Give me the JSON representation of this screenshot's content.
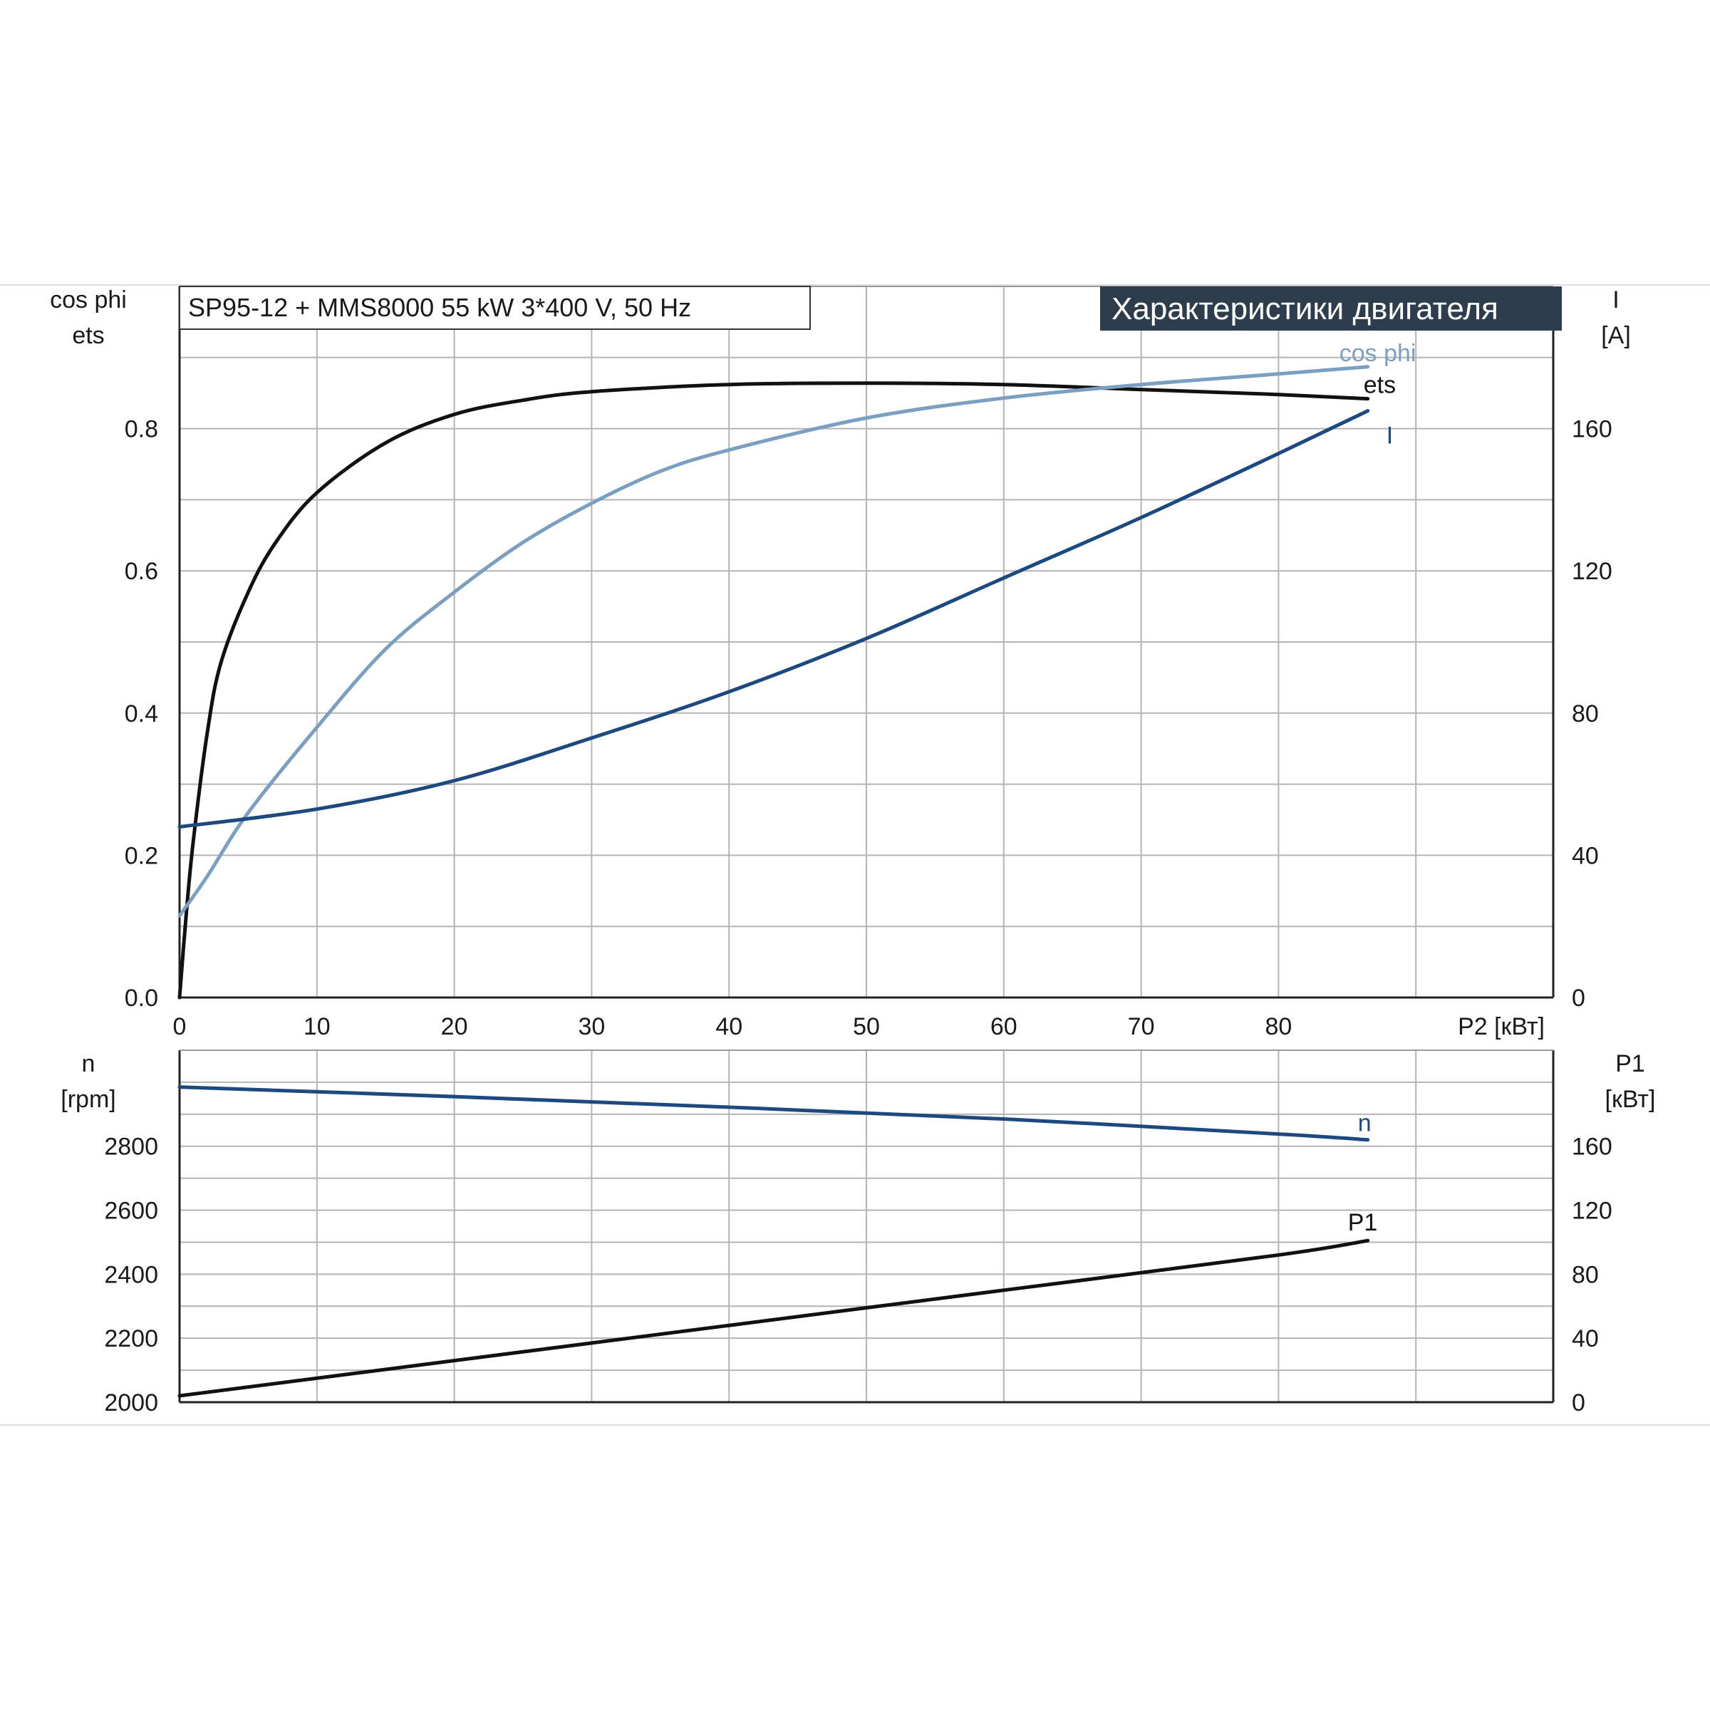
{
  "header": {
    "model": "SP95-12 + MMS8000   55 kW   3*400 V, 50 Hz",
    "section_title": "Характеристики двигателя"
  },
  "colors": {
    "eta": "#111111",
    "cos_phi": "#7a9fc0",
    "current": "#1c4a80",
    "speed": "#1c4a80",
    "p1": "#111111",
    "grid": "#b5b5b5",
    "title_bg": "#2e3d4e"
  },
  "chart_data": [
    {
      "type": "line",
      "title": "",
      "xlabel": "P2 [кВт]",
      "x_ticks": [
        "0",
        "10",
        "20",
        "30",
        "40",
        "50",
        "60",
        "70",
        "80"
      ],
      "xlim": [
        0,
        100
      ],
      "left_axis": {
        "label_top": "cos phi",
        "label_bottom": "ets",
        "ylim": [
          0,
          1.0
        ],
        "ticks": [
          "0.0",
          "0.2",
          "0.4",
          "0.6",
          "0.8"
        ]
      },
      "right_axis": {
        "label_top": "I",
        "label_bottom": "[A]",
        "ylim": [
          0,
          200
        ],
        "ticks": [
          "0",
          "40",
          "80",
          "120",
          "160"
        ]
      },
      "series": [
        {
          "name": "ets",
          "axis": "left",
          "x": [
            0,
            0.5,
            1,
            2,
            3,
            5,
            7,
            10,
            15,
            20,
            25,
            30,
            40,
            50,
            60,
            70,
            80,
            86.5
          ],
          "y": [
            0,
            0.12,
            0.22,
            0.37,
            0.47,
            0.57,
            0.64,
            0.71,
            0.78,
            0.82,
            0.84,
            0.852,
            0.862,
            0.864,
            0.862,
            0.855,
            0.848,
            0.842
          ]
        },
        {
          "name": "cos phi",
          "axis": "left",
          "x": [
            0,
            2,
            5,
            10,
            15,
            20,
            25,
            30,
            35,
            40,
            50,
            60,
            70,
            80,
            86.5
          ],
          "y": [
            0.115,
            0.17,
            0.26,
            0.38,
            0.49,
            0.57,
            0.64,
            0.695,
            0.74,
            0.77,
            0.815,
            0.843,
            0.862,
            0.877,
            0.887
          ]
        },
        {
          "name": "I",
          "axis": "right",
          "x": [
            0,
            10,
            20,
            30,
            40,
            50,
            60,
            70,
            80,
            86.5
          ],
          "y": [
            48,
            53,
            61,
            73,
            86,
            101,
            118,
            135,
            153,
            165
          ]
        }
      ]
    },
    {
      "type": "line",
      "title": "",
      "xlim": [
        0,
        100
      ],
      "left_axis": {
        "label_top": "n",
        "label_bottom": "[rpm]",
        "ylim": [
          2000,
          3100
        ],
        "ticks": [
          "2000",
          "2200",
          "2400",
          "2600",
          "2800"
        ]
      },
      "right_axis": {
        "label_top": "P1",
        "label_bottom": "[кВт]",
        "ylim": [
          0,
          220
        ],
        "ticks": [
          "0",
          "40",
          "80",
          "120",
          "160"
        ]
      },
      "series": [
        {
          "name": "n",
          "axis": "left",
          "x": [
            0,
            20,
            40,
            60,
            80,
            86.5
          ],
          "y": [
            2985,
            2955,
            2922,
            2885,
            2838,
            2820
          ]
        },
        {
          "name": "P1",
          "axis": "right",
          "x": [
            0,
            20,
            40,
            60,
            80,
            86.5
          ],
          "y": [
            4,
            26,
            48,
            70,
            92,
            101
          ]
        }
      ]
    }
  ]
}
